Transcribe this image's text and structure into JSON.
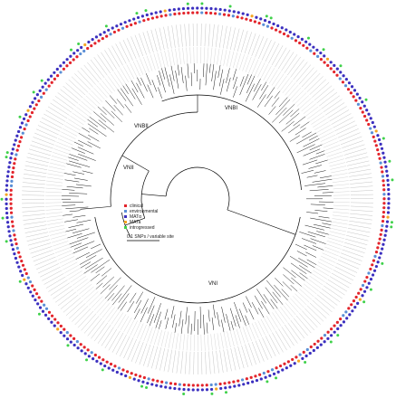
{
  "legend": {
    "items": [
      {
        "label": "clinical",
        "color": "#e3242b"
      },
      {
        "label": "environmental",
        "color": "#5b8fd6"
      },
      {
        "label": "MATα",
        "color": "#3b2fbf"
      },
      {
        "label": "MATa",
        "color": "#f5a623"
      },
      {
        "label": "introgressed",
        "color": "#3fd14a"
      }
    ]
  },
  "scale_bar": {
    "label": "0.1 SNPs / variable site"
  },
  "clades": {
    "vnbi": "VNBI",
    "vnbii": "VNBII",
    "vnii": "VNII",
    "vni": "VNI"
  },
  "colors": {
    "tree": "#000000",
    "ring_guide": "#bbbbbb"
  }
}
